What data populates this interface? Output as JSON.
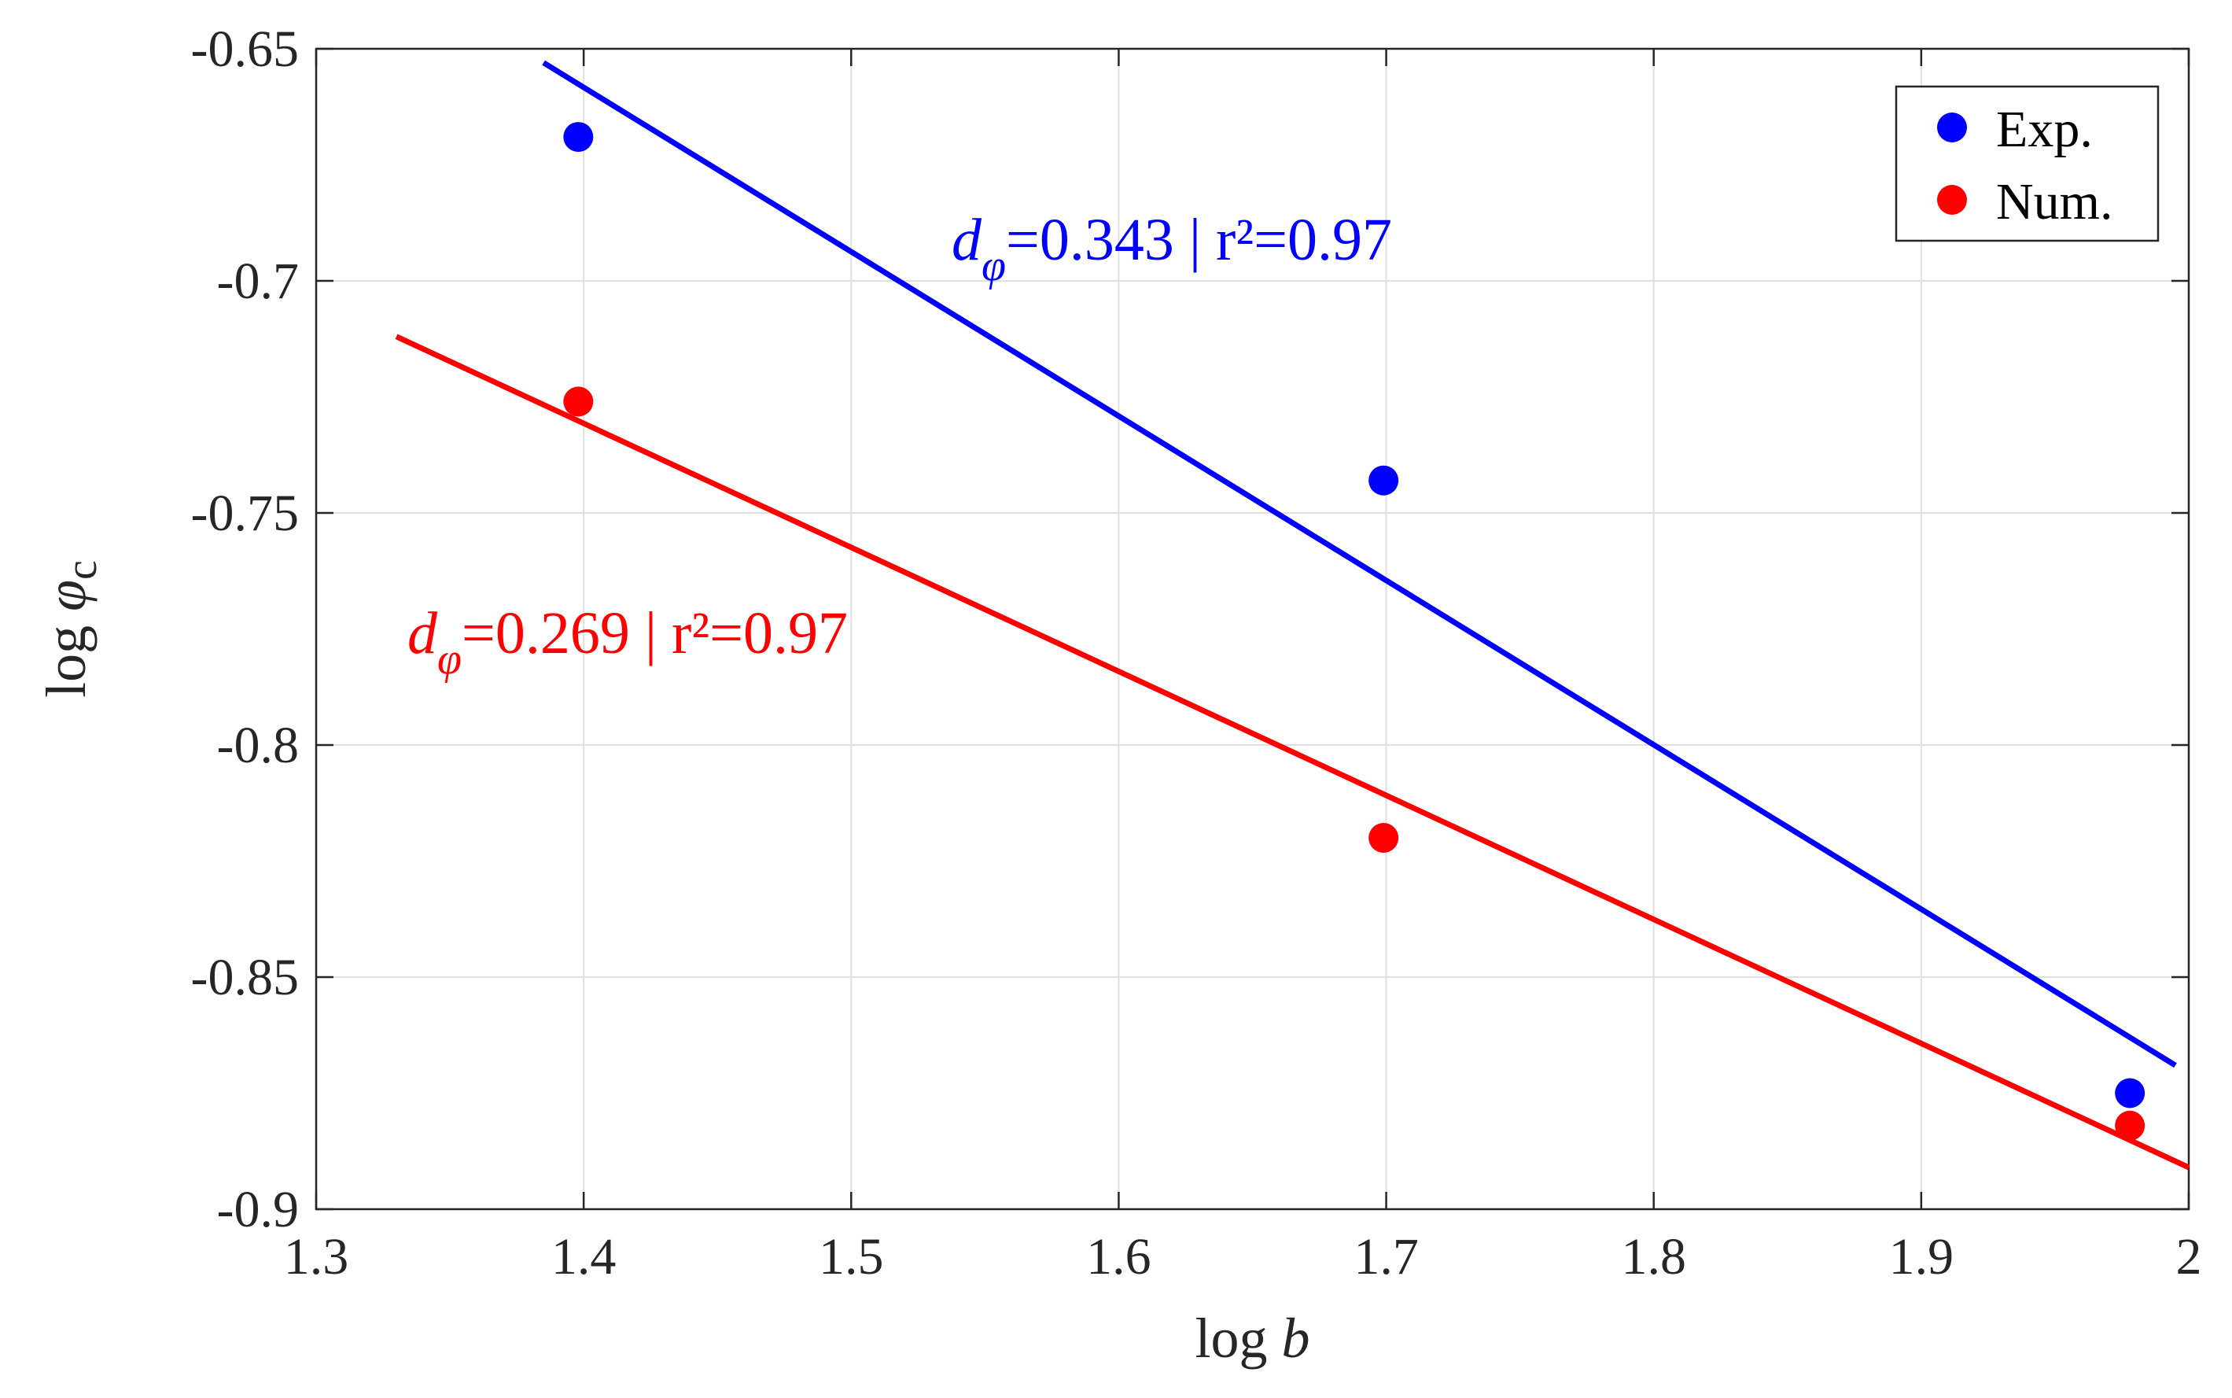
{
  "chart_data": {
    "type": "scatter",
    "xlabel_prefix": "log ",
    "xlabel_var": "b",
    "ylabel_prefix": "log ",
    "ylabel_var": "φ",
    "ylabel_sub": "c",
    "xlim": [
      1.3,
      2.0
    ],
    "ylim": [
      -0.9,
      -0.65
    ],
    "xticks": [
      1.3,
      1.4,
      1.5,
      1.6,
      1.7,
      1.8,
      1.9,
      2.0
    ],
    "xtick_labels": [
      "1.3",
      "1.4",
      "1.5",
      "1.6",
      "1.7",
      "1.8",
      "1.9",
      "2"
    ],
    "yticks": [
      -0.65,
      -0.7,
      -0.75,
      -0.8,
      -0.85,
      -0.9
    ],
    "ytick_labels": [
      "-0.65",
      "-0.7",
      "-0.75",
      "-0.8",
      "-0.85",
      "-0.9"
    ],
    "grid": true,
    "legend_position": "top-right",
    "series": [
      {
        "name": "Exp.",
        "color": "#0000ff",
        "x": [
          1.398,
          1.699,
          1.978
        ],
        "y": [
          -0.669,
          -0.743,
          -0.875
        ],
        "fit_line": {
          "x": [
            1.385,
            1.995
          ],
          "y": [
            -0.653,
            -0.869
          ]
        },
        "annotation": {
          "var": "d",
          "sub": "φ",
          "text": "=0.343 | r²=0.97"
        }
      },
      {
        "name": "Num.",
        "color": "#ff0000",
        "x": [
          1.398,
          1.699,
          1.978
        ],
        "y": [
          -0.726,
          -0.82,
          -0.882
        ],
        "fit_line": {
          "x": [
            1.33,
            2.0
          ],
          "y": [
            -0.712,
            -0.891
          ]
        },
        "annotation": {
          "var": "d",
          "sub": "φ",
          "text": "=0.269 | r²=0.97"
        }
      }
    ]
  }
}
